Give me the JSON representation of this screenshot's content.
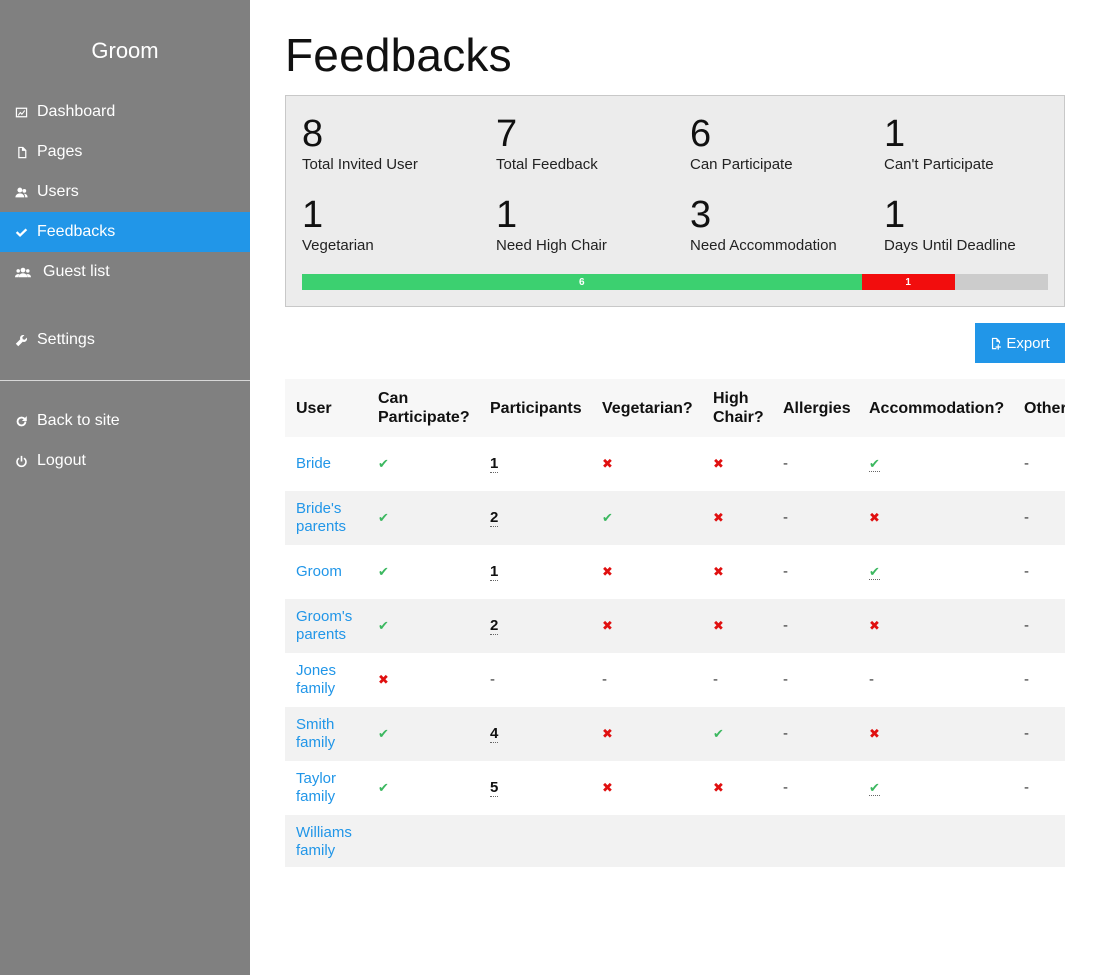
{
  "sidebar": {
    "brand": "Groom",
    "items": [
      {
        "label": "Dashboard",
        "icon": "chart-icon",
        "active": false
      },
      {
        "label": "Pages",
        "icon": "page-icon",
        "active": false
      },
      {
        "label": "Users",
        "icon": "users-icon",
        "active": false
      },
      {
        "label": "Feedbacks",
        "icon": "check-icon",
        "active": true
      },
      {
        "label": "Guest list",
        "icon": "group-icon",
        "active": false
      },
      {
        "label": "Settings",
        "icon": "wrench-icon",
        "active": false
      }
    ],
    "bottom_items": [
      {
        "label": "Back to site",
        "icon": "refresh-icon"
      },
      {
        "label": "Logout",
        "icon": "power-icon"
      }
    ]
  },
  "page": {
    "title": "Feedbacks"
  },
  "stats": [
    {
      "value": "8",
      "label": "Total Invited User"
    },
    {
      "value": "7",
      "label": "Total Feedback"
    },
    {
      "value": "6",
      "label": "Can Participate"
    },
    {
      "value": "1",
      "label": "Can't Participate"
    },
    {
      "value": "1",
      "label": "Vegetarian"
    },
    {
      "value": "1",
      "label": "Need High Chair"
    },
    {
      "value": "3",
      "label": "Need Accommodation"
    },
    {
      "value": "1",
      "label": "Days Until Deadline"
    }
  ],
  "progress": {
    "total": 8,
    "segments": [
      {
        "value": 6,
        "label": "6",
        "color": "#3cd070"
      },
      {
        "value": 1,
        "label": "1",
        "color": "#f20d0d"
      }
    ]
  },
  "toolbar": {
    "export_label": "Export"
  },
  "table": {
    "columns": [
      "User",
      "Can Participate?",
      "Participants",
      "Vegetarian?",
      "High Chair?",
      "Allergies",
      "Accommodation?",
      "Other"
    ],
    "rows": [
      {
        "user": "Bride",
        "can": "check",
        "participants": "1",
        "veg": "cross",
        "chair": "cross",
        "allergies": "-",
        "accom": "check-dotted",
        "other": "-"
      },
      {
        "user": "Bride's parents",
        "can": "check",
        "participants": "2",
        "veg": "check",
        "chair": "cross",
        "allergies": "-",
        "accom": "cross",
        "other": "-"
      },
      {
        "user": "Groom",
        "can": "check",
        "participants": "1",
        "veg": "cross",
        "chair": "cross",
        "allergies": "-",
        "accom": "check-dotted",
        "other": "-"
      },
      {
        "user": "Groom's parents",
        "can": "check",
        "participants": "2",
        "veg": "cross",
        "chair": "cross",
        "allergies": "-",
        "accom": "cross",
        "other": "-"
      },
      {
        "user": "Jones family",
        "can": "cross",
        "participants": "-",
        "veg": "-",
        "chair": "-",
        "allergies": "-",
        "accom": "-",
        "other": "-"
      },
      {
        "user": "Smith family",
        "can": "check",
        "participants": "4",
        "veg": "cross",
        "chair": "check",
        "allergies": "-",
        "accom": "cross",
        "other": "-"
      },
      {
        "user": "Taylor family",
        "can": "check",
        "participants": "5",
        "veg": "cross",
        "chair": "cross",
        "allergies": "-",
        "accom": "check-dotted",
        "other": "-"
      },
      {
        "user": "Williams family",
        "can": "",
        "participants": "",
        "veg": "",
        "chair": "",
        "allergies": "",
        "accom": "",
        "other": ""
      }
    ]
  }
}
